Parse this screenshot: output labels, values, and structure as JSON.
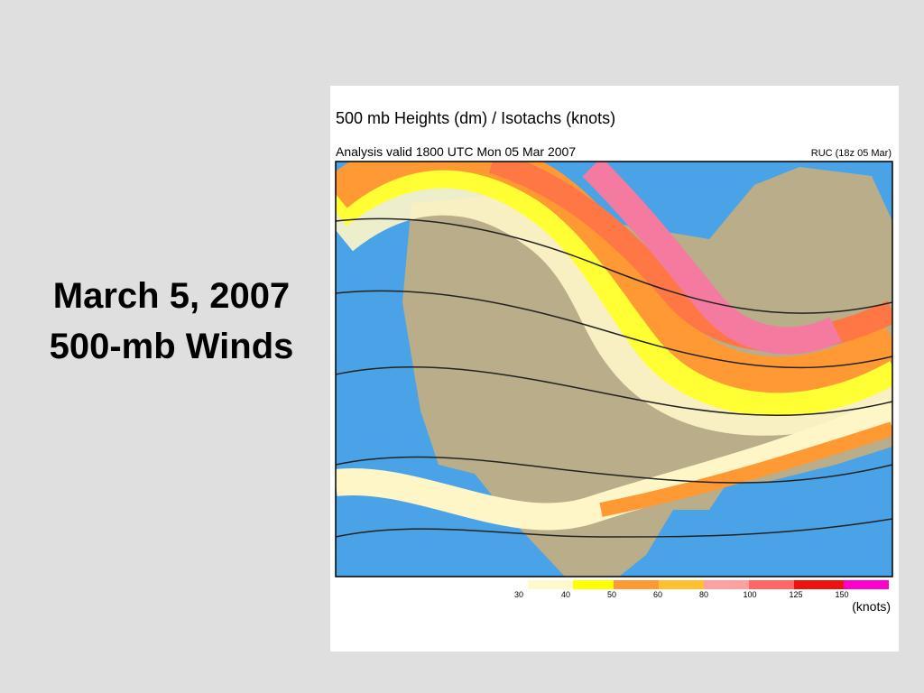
{
  "slide": {
    "title_lines": [
      "March 5, 2007",
      "500-mb Winds"
    ]
  },
  "map": {
    "title": "500 mb Heights (dm) / Isotachs (knots)",
    "subtitle": "Analysis valid 1800 UTC Mon 05 Mar 2007",
    "model": "RUC (18z 05 Mar)",
    "legend": {
      "labels": [
        30,
        40,
        50,
        60,
        80,
        100,
        125,
        150
      ],
      "unit": "(knots)"
    }
  }
}
